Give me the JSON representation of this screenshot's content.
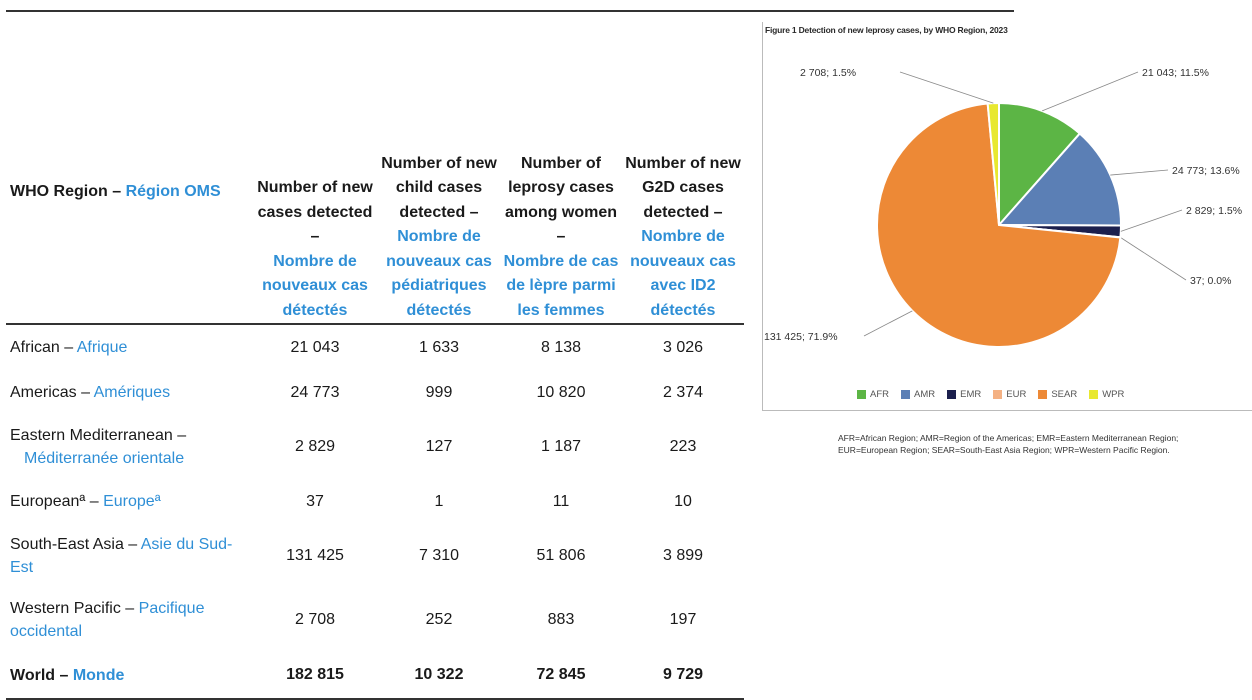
{
  "table": {
    "headers": {
      "region": {
        "en": "WHO Region –",
        "fr": "Région OMS"
      },
      "new_cases": {
        "en": "Number of new cases detected –",
        "fr": "Nombre de nouveaux cas détectés"
      },
      "child_cases": {
        "en": "Number of new child cases detected –",
        "fr": "Nombre de nouveaux cas pédiatriques détectés"
      },
      "women_cases": {
        "en": "Number of leprosy cases among women –",
        "fr": "Nombre de cas de lèpre parmi les femmes"
      },
      "g2d_cases": {
        "en": "Number of new G2D cases detected –",
        "fr": "Nombre de nouveaux cas avec ID2 détectés"
      }
    },
    "rows": [
      {
        "en": "African –",
        "fr": "Afrique",
        "new": "21 043",
        "child": "1 633",
        "women": "8 138",
        "g2d": "3 026"
      },
      {
        "en": "Americas –",
        "fr": "Amériques",
        "new": "24 773",
        "child": "999",
        "women": "10 820",
        "g2d": "2 374"
      },
      {
        "en": "Eastern Mediterranean –",
        "fr": "Méditerranée orientale",
        "new": "2 829",
        "child": "127",
        "women": "1 187",
        "g2d": "223"
      },
      {
        "en": "Europeanª –",
        "fr": "Europeª",
        "new": "37",
        "child": "1",
        "women": "11",
        "g2d": "10"
      },
      {
        "en": "South-East Asia –",
        "fr": "Asie du Sud-Est",
        "new": "131 425",
        "child": "7 310",
        "women": "51 806",
        "g2d": "3 899"
      },
      {
        "en": "Western Pacific –",
        "fr": "Pacifique occidental",
        "new": "2 708",
        "child": "252",
        "women": "883",
        "g2d": "197"
      }
    ],
    "total": {
      "en": "World –",
      "fr": "Monde",
      "new": "182 815",
      "child": "10 322",
      "women": "72 845",
      "g2d": "9 729"
    }
  },
  "chart_data": {
    "type": "pie",
    "title": "Figure 1 Detection of new leprosy cases, by WHO Region, 2023",
    "categories": [
      "AFR",
      "AMR",
      "EMR",
      "EUR",
      "SEAR",
      "WPR"
    ],
    "values": [
      21043,
      24773,
      2829,
      37,
      131425,
      2708
    ],
    "labels": [
      "21 043; 11.5%",
      "24 773; 13.6%",
      "2 829; 1.5%",
      "37; 0.0%",
      "131 425; 71.9%",
      "2 708; 1.5%"
    ],
    "colors": [
      "#5cb545",
      "#5b7fb5",
      "#1b1f4d",
      "#f4b183",
      "#ed8936",
      "#e8e830"
    ],
    "legend_position": "bottom",
    "footnote": "AFR=African Region; AMR=Region of the Americas; EMR=Eastern Mediterranean Region; EUR=European Region; SEAR=South-East Asia Region; WPR=Western Pacific Region."
  }
}
